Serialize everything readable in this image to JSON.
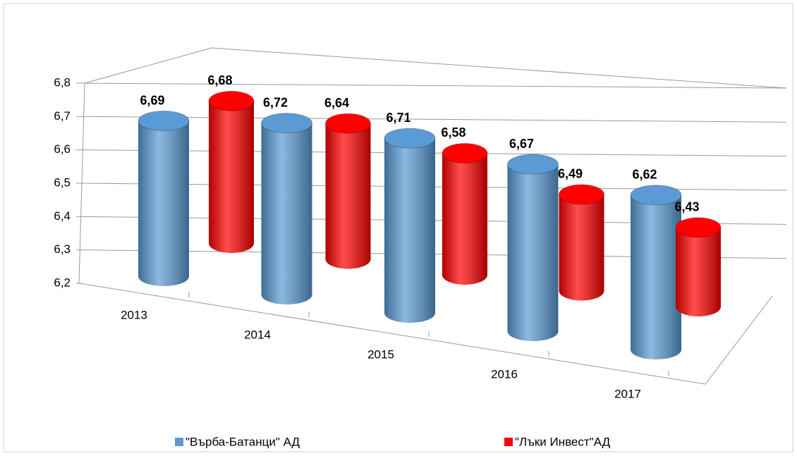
{
  "chart_data": {
    "type": "bar3d",
    "categories": [
      "2013",
      "2014",
      "2015",
      "2016",
      "2017"
    ],
    "series": [
      {
        "name": "\"Върба-Батанци\" АД",
        "color": "#5b9bd5",
        "values": [
          6.69,
          6.72,
          6.71,
          6.67,
          6.62
        ],
        "value_labels": [
          "6,69",
          "6,72",
          "6,71",
          "6,67",
          "6,62"
        ]
      },
      {
        "name": "\"Лъки Инвест\"АД",
        "color": "#ff0000",
        "values": [
          6.68,
          6.64,
          6.58,
          6.49,
          6.43
        ],
        "value_labels": [
          "6,68",
          "6,64",
          "6,58",
          "6,49",
          "6,43"
        ]
      }
    ],
    "ylim": [
      6.2,
      6.8
    ],
    "yticks": [
      {
        "value": 6.2,
        "label": "6,2"
      },
      {
        "value": 6.3,
        "label": "6,3"
      },
      {
        "value": 6.4,
        "label": "6,4"
      },
      {
        "value": 6.5,
        "label": "6,5"
      },
      {
        "value": 6.6,
        "label": "6,6"
      },
      {
        "value": 6.7,
        "label": "6,7"
      },
      {
        "value": 6.8,
        "label": "6,8"
      }
    ],
    "grid": true,
    "legend": "bottom"
  }
}
